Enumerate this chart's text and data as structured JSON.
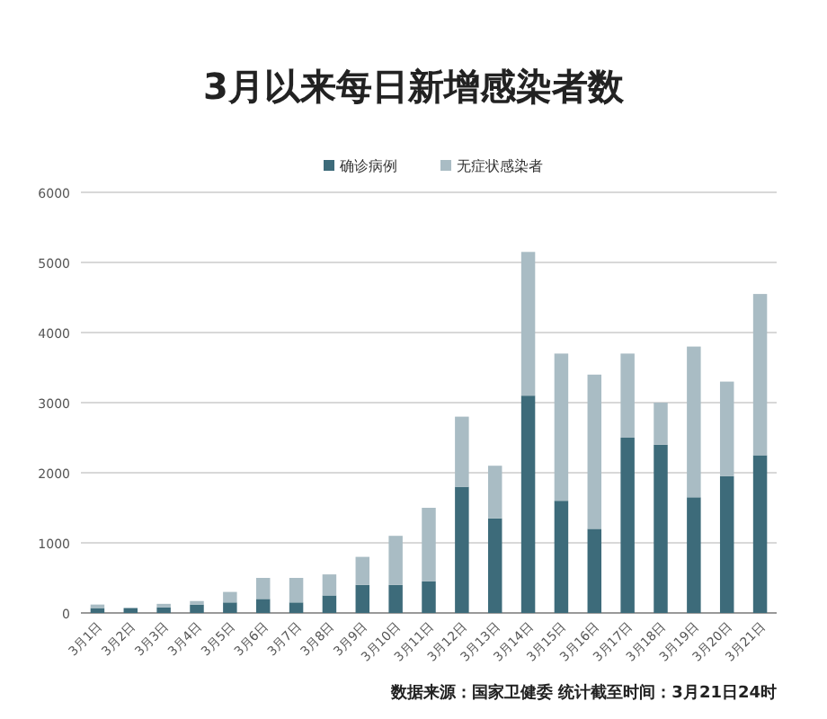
{
  "chart_data": {
    "type": "bar",
    "stacked": true,
    "title": "3月以来每日新增感染者数",
    "categories": [
      "3月1日",
      "3月2日",
      "3月3日",
      "3月4日",
      "3月5日",
      "3月6日",
      "3月7日",
      "3月8日",
      "3月9日",
      "3月10日",
      "3月11日",
      "3月12日",
      "3月13日",
      "3月14日",
      "3月15日",
      "3月16日",
      "3月17日",
      "3月18日",
      "3月19日",
      "3月20日",
      "3月21日"
    ],
    "series": [
      {
        "name": "确诊病例",
        "color": "#3d6b7a",
        "values": [
          70,
          70,
          80,
          120,
          150,
          200,
          150,
          250,
          400,
          400,
          450,
          1800,
          1350,
          3100,
          1600,
          1200,
          2500,
          2400,
          1650,
          1950,
          2250
        ]
      },
      {
        "name": "无症状感染者",
        "color": "#a9bcc4",
        "values": [
          50,
          null,
          50,
          50,
          150,
          300,
          350,
          300,
          400,
          700,
          1050,
          1000,
          750,
          2050,
          2100,
          2200,
          1200,
          600,
          2150,
          1350,
          2300
        ]
      }
    ],
    "ylim": [
      0,
      6000
    ],
    "yticks": [
      0,
      1000,
      2000,
      3000,
      4000,
      5000,
      6000
    ],
    "grid": "y",
    "legend": "top",
    "annotations": [
      "数据来源：国家卫健委  统计截至时间：3月21日24时"
    ]
  }
}
